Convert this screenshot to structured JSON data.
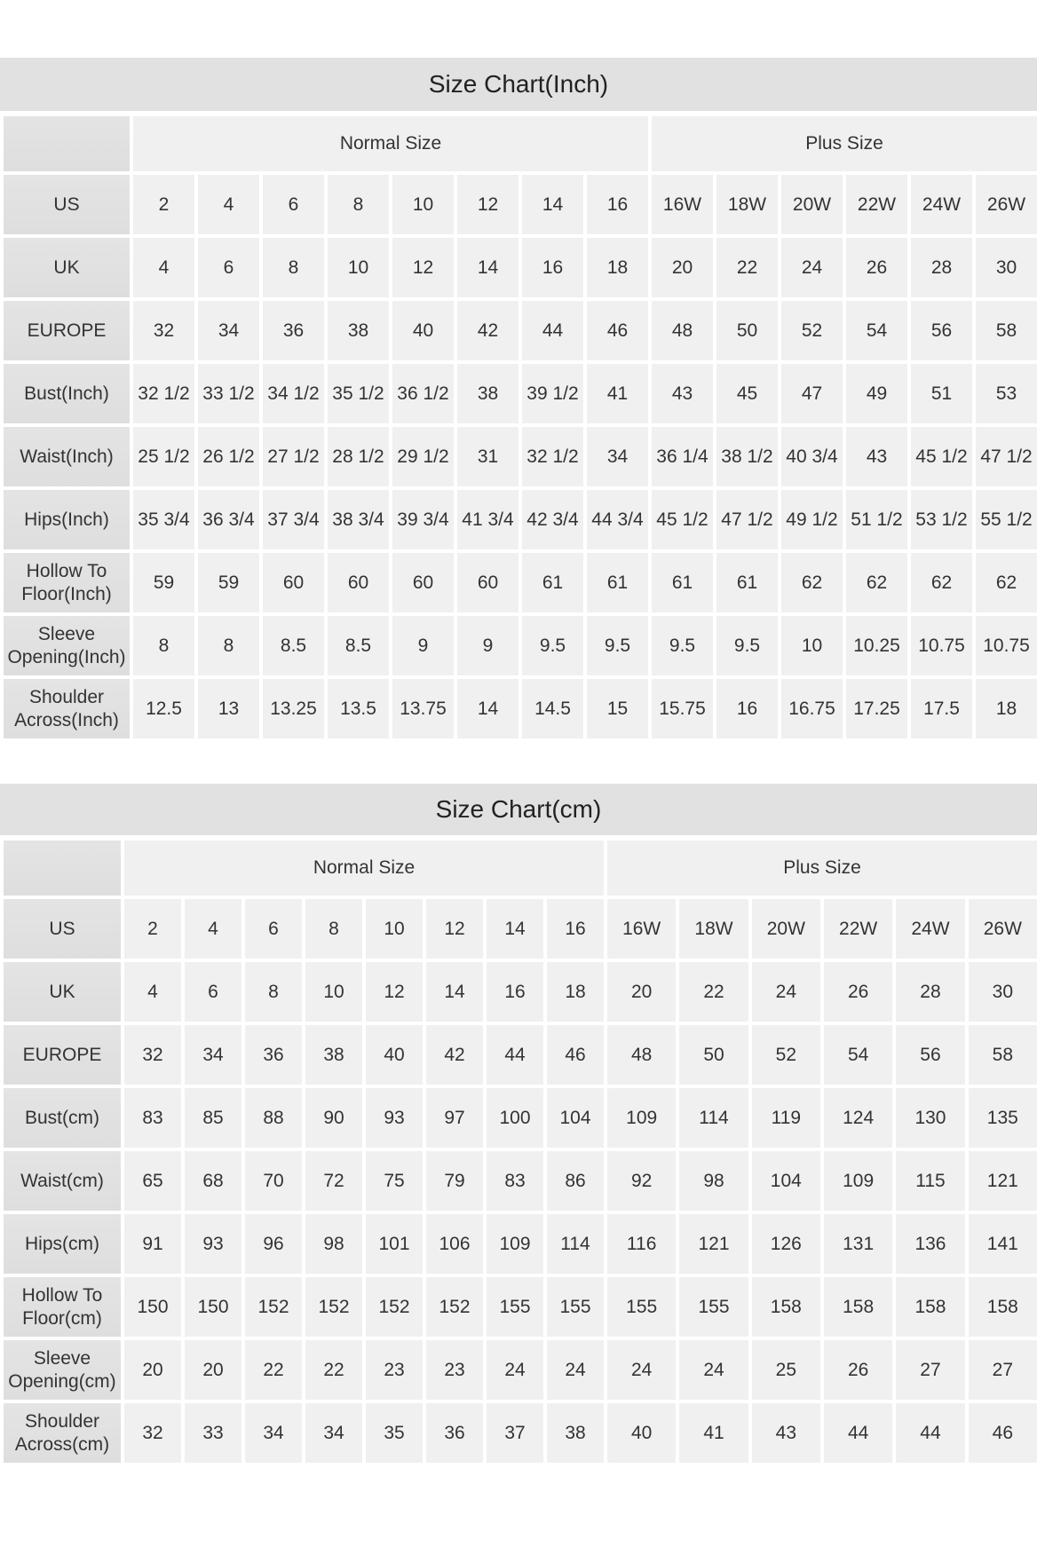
{
  "inch_chart": {
    "title": "Size Chart(Inch)",
    "groups": [
      "Normal Size",
      "Plus Size"
    ],
    "group_spans": [
      8,
      6
    ],
    "rows": [
      {
        "label": "US",
        "values": [
          "2",
          "4",
          "6",
          "8",
          "10",
          "12",
          "14",
          "16",
          "16W",
          "18W",
          "20W",
          "22W",
          "24W",
          "26W"
        ]
      },
      {
        "label": "UK",
        "values": [
          "4",
          "6",
          "8",
          "10",
          "12",
          "14",
          "16",
          "18",
          "20",
          "22",
          "24",
          "26",
          "28",
          "30"
        ]
      },
      {
        "label": "EUROPE",
        "values": [
          "32",
          "34",
          "36",
          "38",
          "40",
          "42",
          "44",
          "46",
          "48",
          "50",
          "52",
          "54",
          "56",
          "58"
        ]
      },
      {
        "label": "Bust(Inch)",
        "values": [
          "32 1/2",
          "33 1/2",
          "34 1/2",
          "35 1/2",
          "36 1/2",
          "38",
          "39 1/2",
          "41",
          "43",
          "45",
          "47",
          "49",
          "51",
          "53"
        ]
      },
      {
        "label": "Waist(Inch)",
        "values": [
          "25 1/2",
          "26 1/2",
          "27 1/2",
          "28 1/2",
          "29 1/2",
          "31",
          "32 1/2",
          "34",
          "36 1/4",
          "38 1/2",
          "40 3/4",
          "43",
          "45 1/2",
          "47 1/2"
        ]
      },
      {
        "label": "Hips(Inch)",
        "values": [
          "35 3/4",
          "36 3/4",
          "37 3/4",
          "38 3/4",
          "39 3/4",
          "41 3/4",
          "42 3/4",
          "44 3/4",
          "45 1/2",
          "47 1/2",
          "49 1/2",
          "51 1/2",
          "53 1/2",
          "55 1/2"
        ]
      },
      {
        "label": "Hollow To Floor(Inch)",
        "values": [
          "59",
          "59",
          "60",
          "60",
          "60",
          "60",
          "61",
          "61",
          "61",
          "61",
          "62",
          "62",
          "62",
          "62"
        ]
      },
      {
        "label": "Sleeve Opening(Inch)",
        "values": [
          "8",
          "8",
          "8.5",
          "8.5",
          "9",
          "9",
          "9.5",
          "9.5",
          "9.5",
          "9.5",
          "10",
          "10.25",
          "10.75",
          "10.75"
        ]
      },
      {
        "label": "Shoulder Across(Inch)",
        "values": [
          "12.5",
          "13",
          "13.25",
          "13.5",
          "13.75",
          "14",
          "14.5",
          "15",
          "15.75",
          "16",
          "16.75",
          "17.25",
          "17.5",
          "18"
        ]
      }
    ]
  },
  "cm_chart": {
    "title": "Size Chart(cm)",
    "groups": [
      "Normal Size",
      "Plus Size"
    ],
    "group_spans": [
      8,
      6
    ],
    "rows": [
      {
        "label": "US",
        "values": [
          "2",
          "4",
          "6",
          "8",
          "10",
          "12",
          "14",
          "16",
          "16W",
          "18W",
          "20W",
          "22W",
          "24W",
          "26W"
        ]
      },
      {
        "label": "UK",
        "values": [
          "4",
          "6",
          "8",
          "10",
          "12",
          "14",
          "16",
          "18",
          "20",
          "22",
          "24",
          "26",
          "28",
          "30"
        ]
      },
      {
        "label": "EUROPE",
        "values": [
          "32",
          "34",
          "36",
          "38",
          "40",
          "42",
          "44",
          "46",
          "48",
          "50",
          "52",
          "54",
          "56",
          "58"
        ]
      },
      {
        "label": "Bust(cm)",
        "values": [
          "83",
          "85",
          "88",
          "90",
          "93",
          "97",
          "100",
          "104",
          "109",
          "114",
          "119",
          "124",
          "130",
          "135"
        ]
      },
      {
        "label": "Waist(cm)",
        "values": [
          "65",
          "68",
          "70",
          "72",
          "75",
          "79",
          "83",
          "86",
          "92",
          "98",
          "104",
          "109",
          "115",
          "121"
        ]
      },
      {
        "label": "Hips(cm)",
        "values": [
          "91",
          "93",
          "96",
          "98",
          "101",
          "106",
          "109",
          "114",
          "116",
          "121",
          "126",
          "131",
          "136",
          "141"
        ]
      },
      {
        "label": "Hollow To Floor(cm)",
        "values": [
          "150",
          "150",
          "152",
          "152",
          "152",
          "152",
          "155",
          "155",
          "155",
          "155",
          "158",
          "158",
          "158",
          "158"
        ]
      },
      {
        "label": "Sleeve Opening(cm)",
        "values": [
          "20",
          "20",
          "22",
          "22",
          "23",
          "23",
          "24",
          "24",
          "24",
          "24",
          "25",
          "26",
          "27",
          "27"
        ]
      },
      {
        "label": "Shoulder Across(cm)",
        "values": [
          "32",
          "33",
          "34",
          "34",
          "35",
          "36",
          "37",
          "38",
          "40",
          "41",
          "43",
          "44",
          "44",
          "46"
        ]
      }
    ]
  }
}
